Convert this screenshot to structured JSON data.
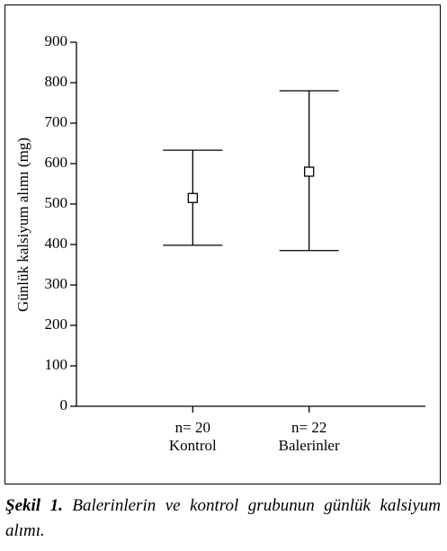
{
  "chart_data": {
    "type": "errorbar",
    "ylabel": "Günlük kalsiyum alımı (mg)",
    "categories": [
      "Kontrol",
      "Balerinler"
    ],
    "group_sizes": [
      "n= 20",
      "n= 22"
    ],
    "means": [
      515,
      580
    ],
    "upper": [
      633,
      780
    ],
    "lower": [
      398,
      385
    ],
    "color": "#000000",
    "ylim": [
      0,
      900
    ],
    "yticks": [
      0,
      100,
      200,
      300,
      400,
      500,
      600,
      700,
      800,
      900
    ]
  },
  "caption": {
    "label": "Şekil 1.",
    "text": "Balerinlerin ve kontrol grubunun günlük kalsiyum alımı."
  }
}
